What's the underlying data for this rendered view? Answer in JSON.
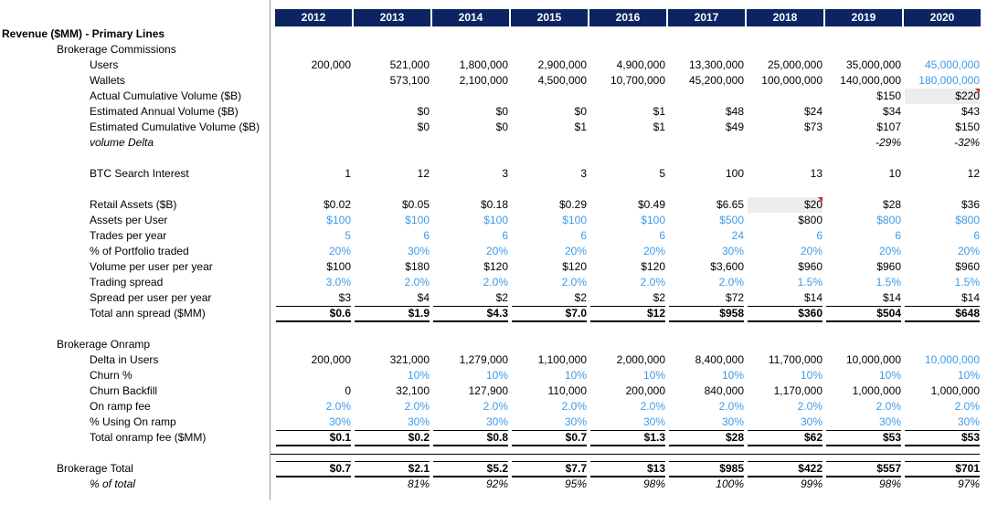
{
  "years": [
    "2012",
    "2013",
    "2014",
    "2015",
    "2016",
    "2017",
    "2018",
    "2019",
    "2020"
  ],
  "section_title": "Revenue ($MM) - Primary Lines",
  "rows": [
    {
      "label": "Brokerage Commissions",
      "level": 1,
      "values": []
    },
    {
      "label": "Users",
      "level": 2,
      "values": [
        "200,000",
        "521,000",
        "1,800,000",
        "2,900,000",
        "4,900,000",
        "13,300,000",
        "25,000,000",
        "35,000,000",
        "45,000,000"
      ],
      "blue": [
        8
      ]
    },
    {
      "label": "Wallets",
      "level": 2,
      "values": [
        "",
        "573,100",
        "2,100,000",
        "4,500,000",
        "10,700,000",
        "45,200,000",
        "100,000,000",
        "140,000,000",
        "180,000,000"
      ],
      "blue": [
        8
      ]
    },
    {
      "label": "Actual Cumulative Volume ($B)",
      "level": 2,
      "values": [
        "",
        "",
        "",
        "",
        "",
        "",
        "",
        "$150",
        "$220"
      ],
      "shade": [
        8
      ],
      "flag": [
        8
      ]
    },
    {
      "label": "Estimated Annual Volume ($B)",
      "level": 2,
      "values": [
        "",
        "$0",
        "$0",
        "$0",
        "$1",
        "$48",
        "$24",
        "$34",
        "$43"
      ]
    },
    {
      "label": "Estimated Cumulative Volume ($B)",
      "level": 2,
      "values": [
        "",
        "$0",
        "$0",
        "$1",
        "$1",
        "$49",
        "$73",
        "$107",
        "$150"
      ]
    },
    {
      "label": "volume Delta",
      "level": 2,
      "italic": true,
      "values": [
        "",
        "",
        "",
        "",
        "",
        "",
        "",
        "-29%",
        "-32%"
      ],
      "italic_vals": true
    },
    {
      "label": "",
      "level": 2,
      "values": []
    },
    {
      "label": "BTC Search Interest",
      "level": 2,
      "values": [
        "1",
        "12",
        "3",
        "3",
        "5",
        "100",
        "13",
        "10",
        "12"
      ]
    },
    {
      "label": "",
      "level": 2,
      "values": []
    },
    {
      "label": "Retail Assets ($B)",
      "level": 2,
      "values": [
        "$0.02",
        "$0.05",
        "$0.18",
        "$0.29",
        "$0.49",
        "$6.65",
        "$20",
        "$28",
        "$36"
      ],
      "shade": [
        6
      ],
      "flag": [
        6
      ]
    },
    {
      "label": "Assets per User",
      "level": 2,
      "values": [
        "$100",
        "$100",
        "$100",
        "$100",
        "$100",
        "$500",
        "$800",
        "$800",
        "$800"
      ],
      "blue": [
        0,
        1,
        2,
        3,
        4,
        5,
        7,
        8
      ]
    },
    {
      "label": "Trades per year",
      "level": 2,
      "values": [
        "5",
        "6",
        "6",
        "6",
        "6",
        "24",
        "6",
        "6",
        "6"
      ],
      "blue": [
        0,
        1,
        2,
        3,
        4,
        5,
        6,
        7,
        8
      ]
    },
    {
      "label": "% of Portfolio traded",
      "level": 2,
      "values": [
        "20%",
        "30%",
        "20%",
        "20%",
        "20%",
        "30%",
        "20%",
        "20%",
        "20%"
      ],
      "blue": [
        0,
        1,
        2,
        3,
        4,
        5,
        6,
        7,
        8
      ]
    },
    {
      "label": "Volume per user per year",
      "level": 2,
      "values": [
        "$100",
        "$180",
        "$120",
        "$120",
        "$120",
        "$3,600",
        "$960",
        "$960",
        "$960"
      ]
    },
    {
      "label": "Trading spread",
      "level": 2,
      "values": [
        "3.0%",
        "2.0%",
        "2.0%",
        "2.0%",
        "2.0%",
        "2.0%",
        "1.5%",
        "1.5%",
        "1.5%"
      ],
      "blue": [
        0,
        1,
        2,
        3,
        4,
        5,
        6,
        7,
        8
      ]
    },
    {
      "label": "Spread per user per year",
      "level": 2,
      "values": [
        "$3",
        "$4",
        "$2",
        "$2",
        "$2",
        "$72",
        "$14",
        "$14",
        "$14"
      ]
    },
    {
      "label": "Total ann spread ($MM)",
      "level": 2,
      "values": [
        "$0.6",
        "$1.9",
        "$4.3",
        "$7.0",
        "$12",
        "$958",
        "$360",
        "$504",
        "$648"
      ],
      "total": true
    },
    {
      "label": "",
      "level": 2,
      "values": []
    },
    {
      "label": "Brokerage Onramp",
      "level": 1,
      "values": []
    },
    {
      "label": "Delta in Users",
      "level": 2,
      "values": [
        "200,000",
        "321,000",
        "1,279,000",
        "1,100,000",
        "2,000,000",
        "8,400,000",
        "11,700,000",
        "10,000,000",
        "10,000,000"
      ],
      "blue": [
        8
      ]
    },
    {
      "label": "Churn %",
      "level": 2,
      "values": [
        "",
        "10%",
        "10%",
        "10%",
        "10%",
        "10%",
        "10%",
        "10%",
        "10%"
      ],
      "blue": [
        1,
        2,
        3,
        4,
        5,
        6,
        7,
        8
      ]
    },
    {
      "label": "Churn Backfill",
      "level": 2,
      "values": [
        "0",
        "32,100",
        "127,900",
        "110,000",
        "200,000",
        "840,000",
        "1,170,000",
        "1,000,000",
        "1,000,000"
      ]
    },
    {
      "label": "On ramp fee",
      "level": 2,
      "values": [
        "2.0%",
        "2.0%",
        "2.0%",
        "2.0%",
        "2.0%",
        "2.0%",
        "2.0%",
        "2.0%",
        "2.0%"
      ],
      "blue": [
        0,
        1,
        2,
        3,
        4,
        5,
        6,
        7,
        8
      ]
    },
    {
      "label": "% Using On ramp",
      "level": 2,
      "values": [
        "30%",
        "30%",
        "30%",
        "30%",
        "30%",
        "30%",
        "30%",
        "30%",
        "30%"
      ],
      "blue": [
        0,
        1,
        2,
        3,
        4,
        5,
        6,
        7,
        8
      ]
    },
    {
      "label": "Total onramp fee ($MM)",
      "level": 2,
      "values": [
        "$0.1",
        "$0.2",
        "$0.8",
        "$0.7",
        "$1.3",
        "$28",
        "$62",
        "$53",
        "$53"
      ],
      "total": true
    },
    {
      "label": "",
      "level": 2,
      "values": []
    },
    {
      "label": "Brokerage Total",
      "level": 1,
      "values": [
        "$0.7",
        "$2.1",
        "$5.2",
        "$7.7",
        "$13",
        "$985",
        "$422",
        "$557",
        "$701"
      ],
      "total": true
    },
    {
      "label": "% of total",
      "level": 2,
      "italic": true,
      "values": [
        "",
        "81%",
        "92%",
        "95%",
        "98%",
        "100%",
        "99%",
        "98%",
        "97%"
      ],
      "italic_vals": true
    }
  ]
}
